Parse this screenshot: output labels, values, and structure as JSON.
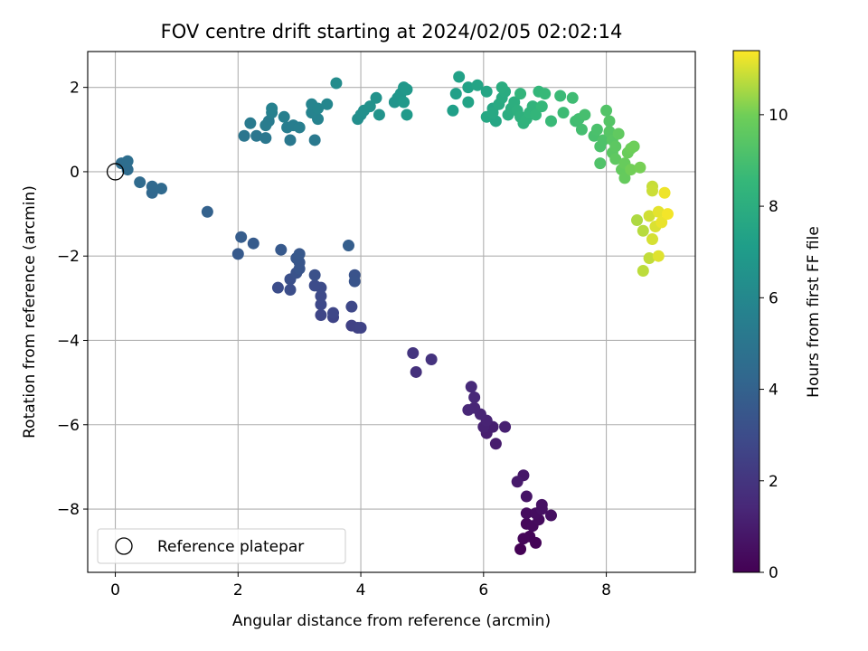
{
  "chart_data": {
    "type": "scatter",
    "title": "FOV centre drift starting at 2024/02/05 02:02:14",
    "xlabel": "Angular distance from reference (arcmin)",
    "ylabel": "Rotation from reference (arcmin)",
    "xlim": [
      -0.45,
      9.45
    ],
    "ylim": [
      -9.5,
      2.85
    ],
    "xticks": [
      0,
      2,
      4,
      6,
      8
    ],
    "yticks": [
      -8,
      -6,
      -4,
      -2,
      0,
      2
    ],
    "grid": true,
    "legend": {
      "placement": "lower-left",
      "entries": [
        "Reference platepar"
      ]
    },
    "reference_point": {
      "x": 0,
      "y": 0,
      "label": "Reference platepar"
    },
    "colorbar": {
      "label": "Hours from first FF file",
      "range": [
        0,
        11.4
      ],
      "ticks": [
        0,
        2,
        4,
        6,
        8,
        10
      ],
      "colormap": "viridis"
    },
    "points": [
      {
        "x": 6.6,
        "y": -8.95,
        "t": 0.05
      },
      {
        "x": 6.85,
        "y": -8.8,
        "t": 0.1
      },
      {
        "x": 6.75,
        "y": -8.65,
        "t": 0.15
      },
      {
        "x": 6.65,
        "y": -8.7,
        "t": 0.2
      },
      {
        "x": 6.7,
        "y": -8.35,
        "t": 0.25
      },
      {
        "x": 6.8,
        "y": -8.4,
        "t": 0.3
      },
      {
        "x": 6.9,
        "y": -8.25,
        "t": 0.35
      },
      {
        "x": 6.7,
        "y": -8.1,
        "t": 0.4
      },
      {
        "x": 6.85,
        "y": -8.1,
        "t": 0.45
      },
      {
        "x": 7.1,
        "y": -8.15,
        "t": 0.5
      },
      {
        "x": 6.95,
        "y": -8.0,
        "t": 0.55
      },
      {
        "x": 6.95,
        "y": -7.9,
        "t": 0.6
      },
      {
        "x": 6.7,
        "y": -7.7,
        "t": 0.7
      },
      {
        "x": 6.65,
        "y": -7.2,
        "t": 0.8
      },
      {
        "x": 6.55,
        "y": -7.35,
        "t": 0.9
      },
      {
        "x": 6.2,
        "y": -6.45,
        "t": 1.0
      },
      {
        "x": 6.05,
        "y": -6.2,
        "t": 1.05
      },
      {
        "x": 6.15,
        "y": -6.05,
        "t": 1.1
      },
      {
        "x": 6.35,
        "y": -6.05,
        "t": 1.15
      },
      {
        "x": 6.0,
        "y": -6.05,
        "t": 1.2
      },
      {
        "x": 6.05,
        "y": -5.9,
        "t": 1.25
      },
      {
        "x": 5.95,
        "y": -5.75,
        "t": 1.3
      },
      {
        "x": 5.85,
        "y": -5.6,
        "t": 1.35
      },
      {
        "x": 5.75,
        "y": -5.65,
        "t": 1.4
      },
      {
        "x": 5.85,
        "y": -5.35,
        "t": 1.45
      },
      {
        "x": 5.8,
        "y": -5.1,
        "t": 1.5
      },
      {
        "x": 4.9,
        "y": -4.75,
        "t": 1.8
      },
      {
        "x": 5.15,
        "y": -4.45,
        "t": 1.9
      },
      {
        "x": 4.85,
        "y": -4.3,
        "t": 2.0
      },
      {
        "x": 3.85,
        "y": -3.65,
        "t": 2.5
      },
      {
        "x": 3.95,
        "y": -3.7,
        "t": 2.55
      },
      {
        "x": 4.0,
        "y": -3.7,
        "t": 2.6
      },
      {
        "x": 3.55,
        "y": -3.45,
        "t": 2.65
      },
      {
        "x": 3.35,
        "y": -3.4,
        "t": 2.7
      },
      {
        "x": 3.55,
        "y": -3.35,
        "t": 2.75
      },
      {
        "x": 3.85,
        "y": -3.2,
        "t": 2.8
      },
      {
        "x": 3.35,
        "y": -3.15,
        "t": 2.85
      },
      {
        "x": 3.35,
        "y": -2.95,
        "t": 2.9
      },
      {
        "x": 3.35,
        "y": -2.75,
        "t": 2.95
      },
      {
        "x": 3.25,
        "y": -2.7,
        "t": 3.0
      },
      {
        "x": 2.65,
        "y": -2.75,
        "t": 3.05
      },
      {
        "x": 2.85,
        "y": -2.8,
        "t": 3.1
      },
      {
        "x": 2.85,
        "y": -2.55,
        "t": 3.15
      },
      {
        "x": 3.25,
        "y": -2.45,
        "t": 3.2
      },
      {
        "x": 2.95,
        "y": -2.4,
        "t": 3.25
      },
      {
        "x": 3.9,
        "y": -2.45,
        "t": 3.3
      },
      {
        "x": 3.9,
        "y": -2.6,
        "t": 3.35
      },
      {
        "x": 3.0,
        "y": -2.3,
        "t": 3.4
      },
      {
        "x": 3.0,
        "y": -2.15,
        "t": 3.45
      },
      {
        "x": 2.95,
        "y": -2.05,
        "t": 3.5
      },
      {
        "x": 3.0,
        "y": -1.95,
        "t": 3.55
      },
      {
        "x": 2.7,
        "y": -1.85,
        "t": 3.6
      },
      {
        "x": 2.0,
        "y": -1.95,
        "t": 3.65
      },
      {
        "x": 2.25,
        "y": -1.7,
        "t": 3.7
      },
      {
        "x": 2.05,
        "y": -1.55,
        "t": 3.75
      },
      {
        "x": 3.8,
        "y": -1.75,
        "t": 3.8
      },
      {
        "x": 1.5,
        "y": -0.95,
        "t": 4.0
      },
      {
        "x": 0.6,
        "y": -0.5,
        "t": 4.3
      },
      {
        "x": 0.6,
        "y": -0.35,
        "t": 4.35
      },
      {
        "x": 0.75,
        "y": -0.4,
        "t": 4.4
      },
      {
        "x": 0.4,
        "y": -0.25,
        "t": 4.45
      },
      {
        "x": 0.2,
        "y": 0.05,
        "t": 4.5
      },
      {
        "x": 0.1,
        "y": 0.2,
        "t": 4.55
      },
      {
        "x": 0.2,
        "y": 0.25,
        "t": 4.6
      },
      {
        "x": 2.1,
        "y": 0.85,
        "t": 5.0
      },
      {
        "x": 2.3,
        "y": 0.85,
        "t": 5.05
      },
      {
        "x": 2.45,
        "y": 0.8,
        "t": 5.1
      },
      {
        "x": 2.85,
        "y": 0.75,
        "t": 5.15
      },
      {
        "x": 3.25,
        "y": 0.75,
        "t": 5.2
      },
      {
        "x": 2.2,
        "y": 1.15,
        "t": 5.25
      },
      {
        "x": 2.5,
        "y": 1.2,
        "t": 5.3
      },
      {
        "x": 2.45,
        "y": 1.1,
        "t": 5.35
      },
      {
        "x": 2.8,
        "y": 1.05,
        "t": 5.4
      },
      {
        "x": 2.9,
        "y": 1.1,
        "t": 5.45
      },
      {
        "x": 3.0,
        "y": 1.05,
        "t": 5.5
      },
      {
        "x": 2.75,
        "y": 1.3,
        "t": 5.55
      },
      {
        "x": 2.55,
        "y": 1.4,
        "t": 5.6
      },
      {
        "x": 2.55,
        "y": 1.5,
        "t": 5.65
      },
      {
        "x": 3.3,
        "y": 1.25,
        "t": 5.7
      },
      {
        "x": 3.2,
        "y": 1.4,
        "t": 5.75
      },
      {
        "x": 3.2,
        "y": 1.6,
        "t": 5.8
      },
      {
        "x": 3.3,
        "y": 1.5,
        "t": 5.85
      },
      {
        "x": 3.45,
        "y": 1.6,
        "t": 5.9
      },
      {
        "x": 3.6,
        "y": 2.1,
        "t": 6.2
      },
      {
        "x": 3.95,
        "y": 1.25,
        "t": 6.3
      },
      {
        "x": 4.0,
        "y": 1.35,
        "t": 6.35
      },
      {
        "x": 4.05,
        "y": 1.45,
        "t": 6.4
      },
      {
        "x": 4.15,
        "y": 1.55,
        "t": 6.45
      },
      {
        "x": 4.25,
        "y": 1.75,
        "t": 6.5
      },
      {
        "x": 4.3,
        "y": 1.35,
        "t": 6.55
      },
      {
        "x": 4.55,
        "y": 1.65,
        "t": 6.6
      },
      {
        "x": 4.6,
        "y": 1.75,
        "t": 6.65
      },
      {
        "x": 4.65,
        "y": 1.85,
        "t": 6.7
      },
      {
        "x": 4.7,
        "y": 2.0,
        "t": 6.75
      },
      {
        "x": 4.75,
        "y": 1.95,
        "t": 6.8
      },
      {
        "x": 4.7,
        "y": 1.65,
        "t": 6.85
      },
      {
        "x": 4.75,
        "y": 1.35,
        "t": 6.9
      },
      {
        "x": 5.5,
        "y": 1.45,
        "t": 7.2
      },
      {
        "x": 5.55,
        "y": 1.85,
        "t": 7.25
      },
      {
        "x": 5.6,
        "y": 2.25,
        "t": 7.3
      },
      {
        "x": 5.75,
        "y": 2.0,
        "t": 7.35
      },
      {
        "x": 5.75,
        "y": 1.65,
        "t": 7.4
      },
      {
        "x": 5.9,
        "y": 2.05,
        "t": 7.45
      },
      {
        "x": 6.05,
        "y": 1.9,
        "t": 7.5
      },
      {
        "x": 6.15,
        "y": 1.5,
        "t": 7.55
      },
      {
        "x": 6.2,
        "y": 1.2,
        "t": 7.6
      },
      {
        "x": 6.05,
        "y": 1.3,
        "t": 7.65
      },
      {
        "x": 6.15,
        "y": 1.4,
        "t": 7.7
      },
      {
        "x": 6.25,
        "y": 1.6,
        "t": 7.75
      },
      {
        "x": 6.3,
        "y": 1.75,
        "t": 7.8
      },
      {
        "x": 6.35,
        "y": 1.9,
        "t": 7.85
      },
      {
        "x": 6.3,
        "y": 2.0,
        "t": 7.9
      },
      {
        "x": 6.4,
        "y": 1.35,
        "t": 7.95
      },
      {
        "x": 6.45,
        "y": 1.5,
        "t": 8.0
      },
      {
        "x": 6.5,
        "y": 1.65,
        "t": 8.05
      },
      {
        "x": 6.55,
        "y": 1.45,
        "t": 8.1
      },
      {
        "x": 6.6,
        "y": 1.3,
        "t": 8.15
      },
      {
        "x": 6.65,
        "y": 1.15,
        "t": 8.2
      },
      {
        "x": 6.7,
        "y": 1.25,
        "t": 8.25
      },
      {
        "x": 6.75,
        "y": 1.4,
        "t": 8.3
      },
      {
        "x": 6.8,
        "y": 1.55,
        "t": 8.35
      },
      {
        "x": 6.6,
        "y": 1.85,
        "t": 8.4
      },
      {
        "x": 6.85,
        "y": 1.35,
        "t": 8.45
      },
      {
        "x": 6.9,
        "y": 1.9,
        "t": 8.5
      },
      {
        "x": 6.95,
        "y": 1.55,
        "t": 8.55
      },
      {
        "x": 7.0,
        "y": 1.85,
        "t": 8.6
      },
      {
        "x": 7.1,
        "y": 1.2,
        "t": 8.65
      },
      {
        "x": 7.25,
        "y": 1.8,
        "t": 8.7
      },
      {
        "x": 7.3,
        "y": 1.4,
        "t": 8.75
      },
      {
        "x": 7.45,
        "y": 1.75,
        "t": 8.8
      },
      {
        "x": 7.5,
        "y": 1.2,
        "t": 8.85
      },
      {
        "x": 7.55,
        "y": 1.25,
        "t": 8.9
      },
      {
        "x": 7.6,
        "y": 1.0,
        "t": 8.95
      },
      {
        "x": 7.65,
        "y": 1.35,
        "t": 9.0
      },
      {
        "x": 7.8,
        "y": 0.85,
        "t": 9.05
      },
      {
        "x": 7.85,
        "y": 1.0,
        "t": 9.1
      },
      {
        "x": 7.9,
        "y": 0.6,
        "t": 9.15
      },
      {
        "x": 7.95,
        "y": 0.75,
        "t": 9.2
      },
      {
        "x": 7.9,
        "y": 0.2,
        "t": 9.25
      },
      {
        "x": 8.0,
        "y": 1.45,
        "t": 9.3
      },
      {
        "x": 8.05,
        "y": 1.2,
        "t": 9.35
      },
      {
        "x": 8.05,
        "y": 0.95,
        "t": 9.4
      },
      {
        "x": 8.1,
        "y": 0.75,
        "t": 9.45
      },
      {
        "x": 8.1,
        "y": 0.45,
        "t": 9.5
      },
      {
        "x": 8.15,
        "y": 0.6,
        "t": 9.55
      },
      {
        "x": 8.15,
        "y": 0.3,
        "t": 9.6
      },
      {
        "x": 8.2,
        "y": 0.9,
        "t": 9.65
      },
      {
        "x": 8.25,
        "y": 0.05,
        "t": 9.7
      },
      {
        "x": 8.3,
        "y": -0.15,
        "t": 9.75
      },
      {
        "x": 8.3,
        "y": 0.2,
        "t": 9.8
      },
      {
        "x": 8.35,
        "y": 0.45,
        "t": 9.85
      },
      {
        "x": 8.4,
        "y": 0.55,
        "t": 9.9
      },
      {
        "x": 8.45,
        "y": 0.6,
        "t": 9.95
      },
      {
        "x": 8.4,
        "y": 0.05,
        "t": 10.0
      },
      {
        "x": 8.55,
        "y": 0.1,
        "t": 10.05
      },
      {
        "x": 8.5,
        "y": -1.15,
        "t": 10.6
      },
      {
        "x": 8.6,
        "y": -1.4,
        "t": 10.7
      },
      {
        "x": 8.6,
        "y": -2.35,
        "t": 10.75
      },
      {
        "x": 8.7,
        "y": -2.05,
        "t": 10.8
      },
      {
        "x": 8.75,
        "y": -0.35,
        "t": 10.85
      },
      {
        "x": 8.75,
        "y": -0.45,
        "t": 10.9
      },
      {
        "x": 8.7,
        "y": -1.05,
        "t": 10.95
      },
      {
        "x": 8.75,
        "y": -1.6,
        "t": 11.0
      },
      {
        "x": 8.8,
        "y": -1.3,
        "t": 11.05
      },
      {
        "x": 8.85,
        "y": -2.0,
        "t": 11.1
      },
      {
        "x": 8.85,
        "y": -0.95,
        "t": 11.15
      },
      {
        "x": 8.9,
        "y": -1.2,
        "t": 11.2
      },
      {
        "x": 8.95,
        "y": -0.5,
        "t": 11.25
      },
      {
        "x": 9.0,
        "y": -1.0,
        "t": 11.3
      }
    ]
  }
}
